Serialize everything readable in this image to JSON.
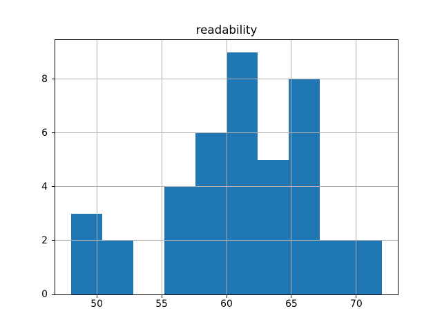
{
  "figure": {
    "background_color": "#ffffff"
  },
  "chart_data": {
    "type": "bar",
    "subtype": "histogram",
    "title": "readability",
    "xlabel": "",
    "ylabel": "",
    "bin_edges": [
      48.0,
      50.4,
      52.8,
      55.2,
      57.6,
      60.0,
      62.4,
      64.8,
      67.2,
      69.6,
      72.0
    ],
    "counts": [
      3,
      2,
      0,
      4,
      6,
      9,
      5,
      8,
      2,
      2
    ],
    "xticks": [
      50,
      55,
      60,
      65,
      70
    ],
    "yticks": [
      0,
      2,
      4,
      6,
      8
    ],
    "xlim": [
      46.8,
      73.2
    ],
    "ylim": [
      0,
      9.45
    ],
    "grid": true,
    "grid_above_bars": true,
    "legend": false,
    "colors": {
      "bar": "#1f77b4",
      "grid": "#b0b0b0",
      "spine": "#000000",
      "text": "#000000",
      "background": "#ffffff"
    }
  }
}
